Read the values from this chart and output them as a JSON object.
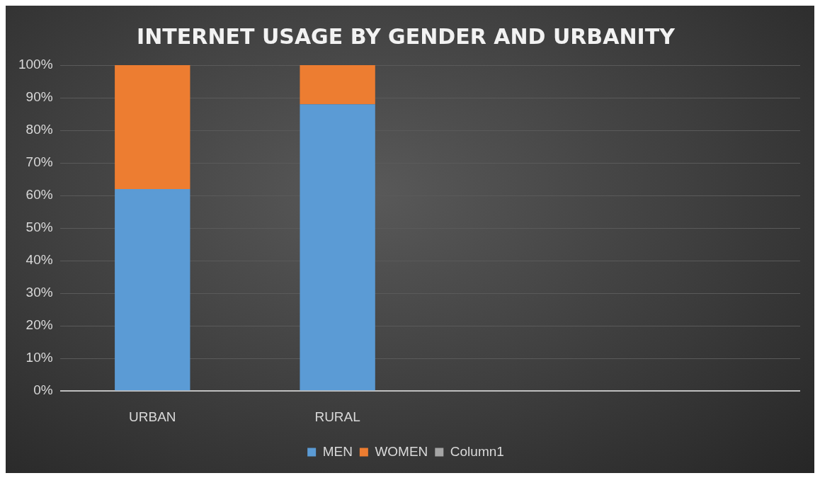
{
  "chart_data": {
    "type": "bar",
    "title": "INTERNET USAGE BY GENDER AND URBANITY",
    "categories": [
      "URBAN",
      "RURAL",
      null,
      null
    ],
    "series": [
      {
        "name": "MEN",
        "color": "#5b9bd5",
        "values": [
          62,
          88,
          null,
          null
        ]
      },
      {
        "name": "WOMEN",
        "color": "#ed7d31",
        "values": [
          38,
          12,
          null,
          null
        ]
      },
      {
        "name": "Column1",
        "color": "#a5a5a5",
        "values": [
          null,
          null,
          null,
          null
        ]
      }
    ],
    "stacked": true,
    "ylim": [
      0,
      100
    ],
    "yticks": [
      {
        "value": 0,
        "label": "0%"
      },
      {
        "value": 10,
        "label": "10%"
      },
      {
        "value": 20,
        "label": "20%"
      },
      {
        "value": 30,
        "label": "30%"
      },
      {
        "value": 40,
        "label": "40%"
      },
      {
        "value": 50,
        "label": "50%"
      },
      {
        "value": 60,
        "label": "60%"
      },
      {
        "value": 70,
        "label": "70%"
      },
      {
        "value": 80,
        "label": "80%"
      },
      {
        "value": 90,
        "label": "90%"
      },
      {
        "value": 100,
        "label": "100%"
      }
    ],
    "grid": "y",
    "legend": "bottom"
  }
}
